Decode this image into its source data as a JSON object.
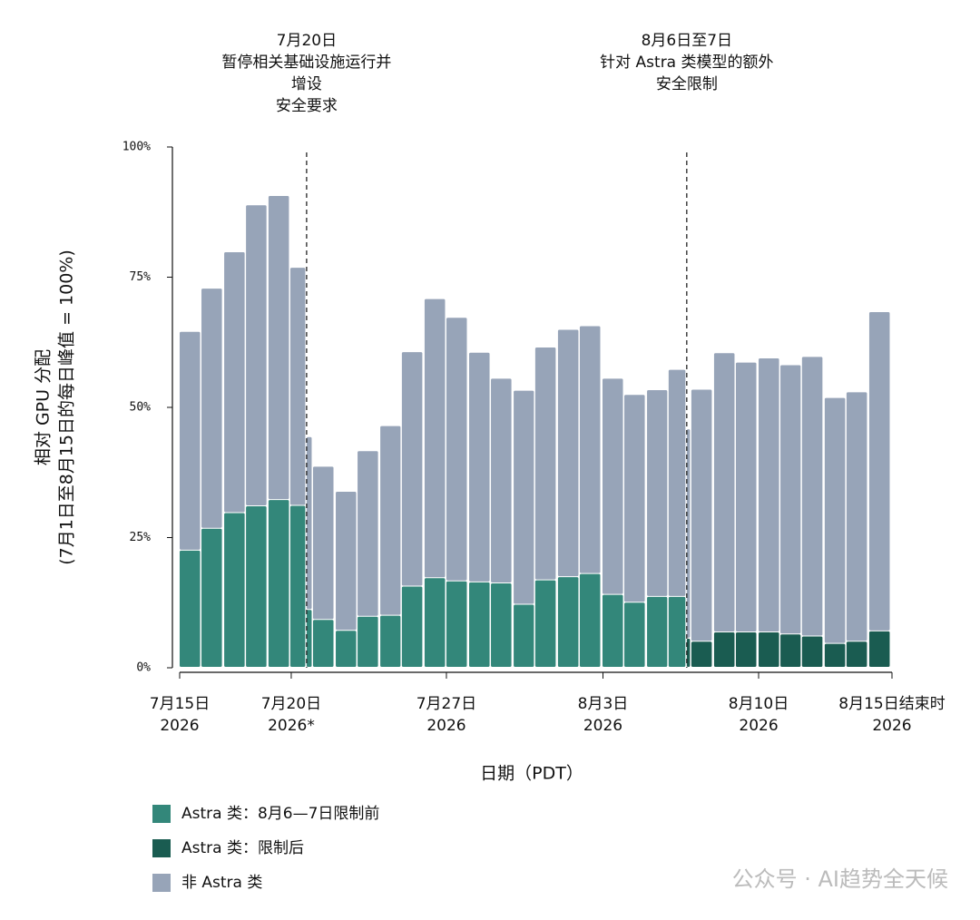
{
  "chart_data": {
    "type": "stacked_bar",
    "x_label": "日期（PDT）",
    "y_label": [
      "相对 GPU 分配",
      "(7月1日至8月15日的每日峰值 = 100%)"
    ],
    "annotations": [
      {
        "x": 5.53,
        "lines": [
          "7月20日",
          "暂停相关基础设施运行并",
          "增设",
          "安全要求"
        ]
      },
      {
        "x": 22.09,
        "lines": [
          "8月6日至7日",
          "针对 Astra 类模型的额外",
          "安全限制"
        ]
      }
    ],
    "x": [
      0,
      0.95,
      1.94,
      2.89,
      3.87,
      4.82,
      5.53,
      5.81,
      6.8,
      7.75,
      8.74,
      9.68,
      10.67,
      11.62,
      12.61,
      13.56,
      14.55,
      15.49,
      16.48,
      17.43,
      18.42,
      19.37,
      20.36,
      21.3,
      22.09,
      22.29,
      23.28,
      24.23,
      25.22,
      26.17,
      27.11,
      28.1,
      29.05,
      30.04
    ],
    "series": [
      {
        "name": "Astra 类：8月6—7日限制前",
        "color": "#33877a",
        "values": [
          22.5,
          26.7,
          29.7,
          31.0,
          32.2,
          31.1,
          11.1,
          9.2,
          7.1,
          9.8,
          10.0,
          15.6,
          17.2,
          16.6,
          16.4,
          16.2,
          12.1,
          16.8,
          17.4,
          18.0,
          14.0,
          12.5,
          13.6,
          13.6,
          null,
          null,
          null,
          null,
          null,
          null,
          null,
          null,
          null,
          null
        ]
      },
      {
        "name": "Astra 类：限制后",
        "color": "#1a5c51",
        "values": [
          null,
          null,
          null,
          null,
          null,
          null,
          null,
          null,
          null,
          null,
          null,
          null,
          null,
          null,
          null,
          null,
          null,
          null,
          null,
          null,
          null,
          null,
          null,
          null,
          5.6,
          5.0,
          6.8,
          6.8,
          6.8,
          6.4,
          6.0,
          4.6,
          5.0,
          7.0
        ]
      },
      {
        "name": "非 Astra 类",
        "color": "#97a4b8",
        "values": [
          42.0,
          46.1,
          50.1,
          57.8,
          58.4,
          45.7,
          33.2,
          29.4,
          26.7,
          31.8,
          36.4,
          45.0,
          53.6,
          50.6,
          44.1,
          39.3,
          41.1,
          44.7,
          47.5,
          47.6,
          41.5,
          39.9,
          39.7,
          43.6,
          40.2,
          48.4,
          53.6,
          51.8,
          52.6,
          51.7,
          53.7,
          47.2,
          47.9,
          61.3
        ]
      }
    ],
    "xlim": [
      0,
      31.03
    ],
    "xticks": [
      {
        "value": 0,
        "label": [
          "7月15日",
          "2026"
        ]
      },
      {
        "value": 4.86,
        "label": [
          "7月20日",
          "2026*"
        ]
      },
      {
        "value": 11.62,
        "label": [
          "7月27日",
          "2026"
        ]
      },
      {
        "value": 18.44,
        "label": [
          "8月3日",
          "2026"
        ]
      },
      {
        "value": 25.22,
        "label": [
          "8月10日",
          "2026"
        ]
      },
      {
        "value": 31.03,
        "label": [
          "8月15日结束时",
          "2026"
        ]
      }
    ],
    "ylim": [
      0,
      100
    ],
    "yticks": [
      {
        "value": 0,
        "label": "0%"
      },
      {
        "value": 25,
        "label": "25%"
      },
      {
        "value": 50,
        "label": "50%"
      },
      {
        "value": 75,
        "label": "75%"
      },
      {
        "value": 100,
        "label": "100%"
      }
    ],
    "grid": false,
    "watermark": "公众号 · AI趋势全天候"
  }
}
